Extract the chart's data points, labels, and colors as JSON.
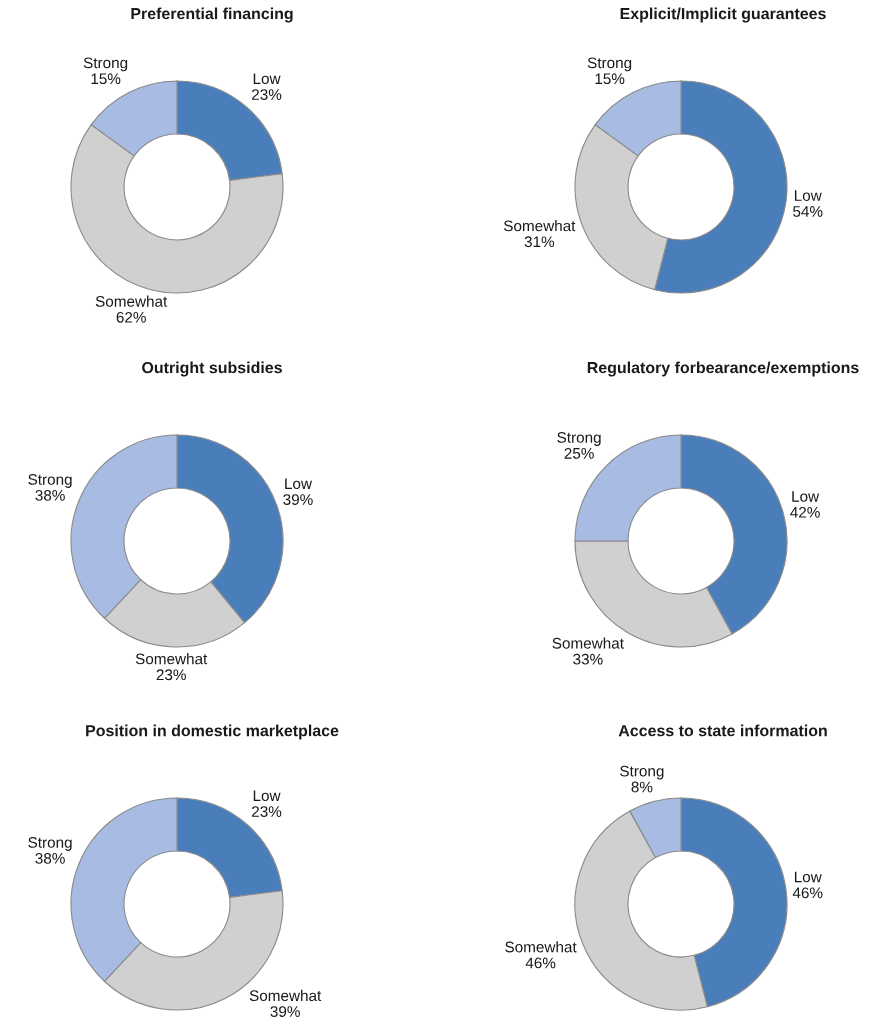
{
  "chart_data": [
    {
      "type": "donut",
      "title": "Preferential financing",
      "categories": [
        "Low",
        "Somewhat",
        "Strong"
      ],
      "values": [
        23,
        62,
        15
      ],
      "value_labels": [
        "23%",
        "62%",
        "15%"
      ],
      "colors": [
        "#4a7ebb",
        "#d0d0d0",
        "#a7bbe3"
      ]
    },
    {
      "type": "donut",
      "title": "Explicit/Implicit guarantees",
      "categories": [
        "Low",
        "Somewhat",
        "Strong"
      ],
      "values": [
        54,
        31,
        15
      ],
      "value_labels": [
        "54%",
        "31%",
        "15%"
      ],
      "colors": [
        "#4a7ebb",
        "#d0d0d0",
        "#a7bbe3"
      ]
    },
    {
      "type": "donut",
      "title": "Outright subsidies",
      "categories": [
        "Low",
        "Somewhat",
        "Strong"
      ],
      "values": [
        39,
        23,
        38
      ],
      "value_labels": [
        "39%",
        "23%",
        "38%"
      ],
      "colors": [
        "#4a7ebb",
        "#d0d0d0",
        "#a7bbe3"
      ]
    },
    {
      "type": "donut",
      "title": "Regulatory forbearance/exemptions",
      "categories": [
        "Low",
        "Somewhat",
        "Strong"
      ],
      "values": [
        42,
        33,
        25
      ],
      "value_labels": [
        "42%",
        "33%",
        "25%"
      ],
      "colors": [
        "#4a7ebb",
        "#d0d0d0",
        "#a7bbe3"
      ]
    },
    {
      "type": "donut",
      "title": "Position in domestic marketplace",
      "categories": [
        "Low",
        "Somewhat",
        "Strong"
      ],
      "values": [
        23,
        39,
        38
      ],
      "value_labels": [
        "23%",
        "39%",
        "38%"
      ],
      "colors": [
        "#4a7ebb",
        "#d0d0d0",
        "#a7bbe3"
      ]
    },
    {
      "type": "donut",
      "title": "Access to state information",
      "categories": [
        "Low",
        "Somewhat",
        "Strong"
      ],
      "values": [
        46,
        46,
        8
      ],
      "value_labels": [
        "46%",
        "46%",
        "8%"
      ],
      "colors": [
        "#4a7ebb",
        "#d0d0d0",
        "#a7bbe3"
      ]
    }
  ]
}
